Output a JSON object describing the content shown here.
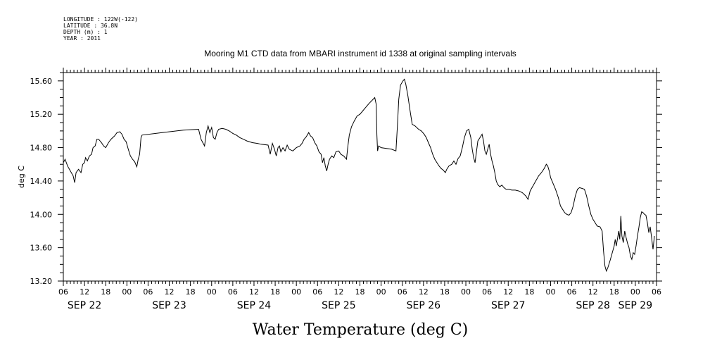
{
  "meta": {
    "longitude": "LONGITUDE : 122W(-122)",
    "latitude": "LATITUDE : 36.8N",
    "depth": "DEPTH (m) : 1",
    "year": "YEAR : 2011"
  },
  "chart_data": {
    "type": "line",
    "title": "Mooring M1 CTD data from MBARI instrument id 1338 at original sampling intervals",
    "xlabel": "Water Temperature (deg C)",
    "ylabel": "deg C",
    "x_unit": "hours since 2011-09-22 00:00",
    "xlim": [
      6,
      174
    ],
    "ylim": [
      13.2,
      15.7
    ],
    "yticks": [
      13.2,
      13.6,
      14.0,
      14.4,
      14.8,
      15.2,
      15.6
    ],
    "ytick_labels": [
      "13.20",
      "13.60",
      "14.00",
      "14.40",
      "14.80",
      "15.20",
      "15.60"
    ],
    "xticks": [
      6,
      12,
      18,
      24,
      30,
      36,
      42,
      48,
      54,
      60,
      66,
      72,
      78,
      84,
      90,
      96,
      102,
      108,
      114,
      120,
      126,
      132,
      138,
      144,
      150,
      156,
      162,
      168,
      174
    ],
    "xtick_labels": [
      "06",
      "12",
      "18",
      "00",
      "06",
      "12",
      "18",
      "00",
      "06",
      "12",
      "18",
      "00",
      "06",
      "12",
      "18",
      "00",
      "06",
      "12",
      "18",
      "00",
      "06",
      "12",
      "18",
      "00",
      "06",
      "12",
      "18",
      "00",
      "06"
    ],
    "day_labels": [
      {
        "x": 12,
        "label": "SEP 22"
      },
      {
        "x": 36,
        "label": "SEP 23"
      },
      {
        "x": 60,
        "label": "SEP 24"
      },
      {
        "x": 84,
        "label": "SEP 25"
      },
      {
        "x": 108,
        "label": "SEP 26"
      },
      {
        "x": 132,
        "label": "SEP 27"
      },
      {
        "x": 156,
        "label": "SEP 28"
      },
      {
        "x": 168,
        "label": "SEP 29"
      }
    ],
    "grid": false,
    "series": [
      {
        "values": [
          [
            6.0,
            14.62
          ],
          [
            6.5,
            14.66
          ],
          [
            7.2,
            14.58
          ],
          [
            8.0,
            14.52
          ],
          [
            8.8,
            14.46
          ],
          [
            9.2,
            14.38
          ],
          [
            9.6,
            14.5
          ],
          [
            10.3,
            14.54
          ],
          [
            11.0,
            14.5
          ],
          [
            11.5,
            14.6
          ],
          [
            12.0,
            14.62
          ],
          [
            12.3,
            14.68
          ],
          [
            12.8,
            14.64
          ],
          [
            13.4,
            14.7
          ],
          [
            14.0,
            14.72
          ],
          [
            14.4,
            14.8
          ],
          [
            15.0,
            14.82
          ],
          [
            15.5,
            14.9
          ],
          [
            16.0,
            14.9
          ],
          [
            16.8,
            14.86
          ],
          [
            17.4,
            14.82
          ],
          [
            18.0,
            14.8
          ],
          [
            18.8,
            14.86
          ],
          [
            19.5,
            14.9
          ],
          [
            20.5,
            14.94
          ],
          [
            21.2,
            14.98
          ],
          [
            22.0,
            14.99
          ],
          [
            22.6,
            14.96
          ],
          [
            23.2,
            14.9
          ],
          [
            23.8,
            14.87
          ],
          [
            24.4,
            14.78
          ],
          [
            25.0,
            14.7
          ],
          [
            25.6,
            14.66
          ],
          [
            26.2,
            14.63
          ],
          [
            26.8,
            14.57
          ],
          [
            27.2,
            14.66
          ],
          [
            27.6,
            14.72
          ],
          [
            28.0,
            14.92
          ],
          [
            28.3,
            14.95
          ],
          [
            34.0,
            14.98
          ],
          [
            40.0,
            15.01
          ],
          [
            44.3,
            15.02
          ],
          [
            45.0,
            14.9
          ],
          [
            45.5,
            14.86
          ],
          [
            46.0,
            14.82
          ],
          [
            46.5,
            14.98
          ],
          [
            47.0,
            15.06
          ],
          [
            47.5,
            14.98
          ],
          [
            48.0,
            15.04
          ],
          [
            48.5,
            14.92
          ],
          [
            49.0,
            14.9
          ],
          [
            49.5,
            14.98
          ],
          [
            50.0,
            15.02
          ],
          [
            51.0,
            15.03
          ],
          [
            52.0,
            15.02
          ],
          [
            53.0,
            15.0
          ],
          [
            54.0,
            14.97
          ],
          [
            55.0,
            14.95
          ],
          [
            56.0,
            14.92
          ],
          [
            57.0,
            14.9
          ],
          [
            58.0,
            14.88
          ],
          [
            59.5,
            14.86
          ],
          [
            61.0,
            14.85
          ],
          [
            62.0,
            14.84
          ],
          [
            64.0,
            14.83
          ],
          [
            64.6,
            14.72
          ],
          [
            65.2,
            14.85
          ],
          [
            65.8,
            14.78
          ],
          [
            66.3,
            14.7
          ],
          [
            66.8,
            14.8
          ],
          [
            67.2,
            14.82
          ],
          [
            67.6,
            14.75
          ],
          [
            68.2,
            14.8
          ],
          [
            68.8,
            14.76
          ],
          [
            69.4,
            14.83
          ],
          [
            70.0,
            14.78
          ],
          [
            71.0,
            14.76
          ],
          [
            72.0,
            14.8
          ],
          [
            73.0,
            14.82
          ],
          [
            73.6,
            14.85
          ],
          [
            74.2,
            14.9
          ],
          [
            74.8,
            14.93
          ],
          [
            75.5,
            14.98
          ],
          [
            76.0,
            14.94
          ],
          [
            76.6,
            14.92
          ],
          [
            77.2,
            14.86
          ],
          [
            77.8,
            14.82
          ],
          [
            78.4,
            14.75
          ],
          [
            79.0,
            14.72
          ],
          [
            79.4,
            14.62
          ],
          [
            79.8,
            14.68
          ],
          [
            80.2,
            14.58
          ],
          [
            80.6,
            14.52
          ],
          [
            81.0,
            14.6
          ],
          [
            81.4,
            14.66
          ],
          [
            82.0,
            14.7
          ],
          [
            82.6,
            14.68
          ],
          [
            83.2,
            14.75
          ],
          [
            84.0,
            14.76
          ],
          [
            84.6,
            14.72
          ],
          [
            85.4,
            14.7
          ],
          [
            86.2,
            14.66
          ],
          [
            86.6,
            14.82
          ],
          [
            87.0,
            14.95
          ],
          [
            87.6,
            15.05
          ],
          [
            88.4,
            15.12
          ],
          [
            89.2,
            15.18
          ],
          [
            90.0,
            15.2
          ],
          [
            90.8,
            15.24
          ],
          [
            91.6,
            15.28
          ],
          [
            92.6,
            15.33
          ],
          [
            93.5,
            15.37
          ],
          [
            94.2,
            15.4
          ],
          [
            94.6,
            15.32
          ],
          [
            94.8,
            14.95
          ],
          [
            95.0,
            14.76
          ],
          [
            95.3,
            14.82
          ],
          [
            96.0,
            14.8
          ],
          [
            99.0,
            14.78
          ],
          [
            100.2,
            14.76
          ],
          [
            100.6,
            15.05
          ],
          [
            101.0,
            15.38
          ],
          [
            101.5,
            15.55
          ],
          [
            102.2,
            15.6
          ],
          [
            102.6,
            15.62
          ],
          [
            103.0,
            15.56
          ],
          [
            103.6,
            15.42
          ],
          [
            104.2,
            15.24
          ],
          [
            104.8,
            15.08
          ],
          [
            105.6,
            15.06
          ],
          [
            106.6,
            15.02
          ],
          [
            107.4,
            15.0
          ],
          [
            108.2,
            14.96
          ],
          [
            108.8,
            14.92
          ],
          [
            109.4,
            14.86
          ],
          [
            110.0,
            14.8
          ],
          [
            110.6,
            14.72
          ],
          [
            111.2,
            14.66
          ],
          [
            111.8,
            14.62
          ],
          [
            112.4,
            14.58
          ],
          [
            113.0,
            14.55
          ],
          [
            113.6,
            14.53
          ],
          [
            114.2,
            14.5
          ],
          [
            114.6,
            14.54
          ],
          [
            115.2,
            14.58
          ],
          [
            116.0,
            14.6
          ],
          [
            116.6,
            14.64
          ],
          [
            117.2,
            14.6
          ],
          [
            117.8,
            14.67
          ],
          [
            118.4,
            14.7
          ],
          [
            119.0,
            14.8
          ],
          [
            119.6,
            14.92
          ],
          [
            120.2,
            15.0
          ],
          [
            120.8,
            15.02
          ],
          [
            121.4,
            14.92
          ],
          [
            121.8,
            14.78
          ],
          [
            122.2,
            14.68
          ],
          [
            122.6,
            14.62
          ],
          [
            123.0,
            14.75
          ],
          [
            123.4,
            14.88
          ],
          [
            124.0,
            14.92
          ],
          [
            124.6,
            14.96
          ],
          [
            125.0,
            14.88
          ],
          [
            125.4,
            14.76
          ],
          [
            125.8,
            14.72
          ],
          [
            126.2,
            14.78
          ],
          [
            126.6,
            14.84
          ],
          [
            127.0,
            14.72
          ],
          [
            127.4,
            14.64
          ],
          [
            127.8,
            14.58
          ],
          [
            128.2,
            14.5
          ],
          [
            128.6,
            14.4
          ],
          [
            129.0,
            14.36
          ],
          [
            129.6,
            14.33
          ],
          [
            130.2,
            14.35
          ],
          [
            130.8,
            14.32
          ],
          [
            131.4,
            14.3
          ],
          [
            132.2,
            14.3
          ],
          [
            133.0,
            14.29
          ],
          [
            134.0,
            14.29
          ],
          [
            135.0,
            14.28
          ],
          [
            136.0,
            14.26
          ],
          [
            137.0,
            14.22
          ],
          [
            137.6,
            14.18
          ],
          [
            138.2,
            14.28
          ],
          [
            139.0,
            14.34
          ],
          [
            139.8,
            14.4
          ],
          [
            140.6,
            14.46
          ],
          [
            141.4,
            14.5
          ],
          [
            142.2,
            14.55
          ],
          [
            142.8,
            14.6
          ],
          [
            143.2,
            14.58
          ],
          [
            143.6,
            14.52
          ],
          [
            144.0,
            14.44
          ],
          [
            144.6,
            14.38
          ],
          [
            145.4,
            14.3
          ],
          [
            146.2,
            14.2
          ],
          [
            146.8,
            14.1
          ],
          [
            147.4,
            14.06
          ],
          [
            148.0,
            14.02
          ],
          [
            148.6,
            14.0
          ],
          [
            149.2,
            13.99
          ],
          [
            149.8,
            14.02
          ],
          [
            150.4,
            14.1
          ],
          [
            151.0,
            14.22
          ],
          [
            151.6,
            14.3
          ],
          [
            152.2,
            14.32
          ],
          [
            153.0,
            14.31
          ],
          [
            153.6,
            14.3
          ],
          [
            154.2,
            14.22
          ],
          [
            154.8,
            14.1
          ],
          [
            155.4,
            14.0
          ],
          [
            156.0,
            13.94
          ],
          [
            156.6,
            13.9
          ],
          [
            157.2,
            13.86
          ],
          [
            158.0,
            13.85
          ],
          [
            158.6,
            13.8
          ],
          [
            159.0,
            13.56
          ],
          [
            159.4,
            13.38
          ],
          [
            159.8,
            13.32
          ],
          [
            160.2,
            13.36
          ],
          [
            160.8,
            13.44
          ],
          [
            161.2,
            13.5
          ],
          [
            161.6,
            13.56
          ],
          [
            162.0,
            13.62
          ],
          [
            162.3,
            13.7
          ],
          [
            162.6,
            13.62
          ],
          [
            163.0,
            13.72
          ],
          [
            163.3,
            13.8
          ],
          [
            163.6,
            13.7
          ],
          [
            163.9,
            13.98
          ],
          [
            164.2,
            13.74
          ],
          [
            164.6,
            13.66
          ],
          [
            165.0,
            13.8
          ],
          [
            165.4,
            13.72
          ],
          [
            165.8,
            13.65
          ],
          [
            166.2,
            13.6
          ],
          [
            166.6,
            13.5
          ],
          [
            167.0,
            13.46
          ],
          [
            167.4,
            13.54
          ],
          [
            167.8,
            13.52
          ],
          [
            168.2,
            13.62
          ],
          [
            168.6,
            13.74
          ],
          [
            169.0,
            13.84
          ],
          [
            169.4,
            13.96
          ],
          [
            169.8,
            14.03
          ],
          [
            170.2,
            14.02
          ],
          [
            170.6,
            14.0
          ],
          [
            171.0,
            13.99
          ],
          [
            171.4,
            13.9
          ],
          [
            171.8,
            13.78
          ],
          [
            172.2,
            13.85
          ],
          [
            172.6,
            13.72
          ],
          [
            173.0,
            13.58
          ],
          [
            173.4,
            13.74
          ]
        ]
      }
    ]
  }
}
